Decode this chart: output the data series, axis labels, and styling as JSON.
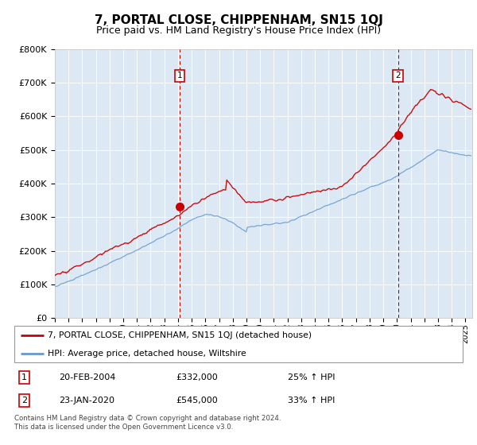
{
  "title": "7, PORTAL CLOSE, CHIPPENHAM, SN15 1QJ",
  "subtitle": "Price paid vs. HM Land Registry's House Price Index (HPI)",
  "title_fontsize": 11,
  "subtitle_fontsize": 9,
  "bg_color": "#dce9f5",
  "red_line_color": "#cc0000",
  "blue_line_color": "#6699cc",
  "annotation1_date": 2004.13,
  "annotation1_value": 332000,
  "annotation2_date": 2020.07,
  "annotation2_value": 545000,
  "legend_label_red": "7, PORTAL CLOSE, CHIPPENHAM, SN15 1QJ (detached house)",
  "legend_label_blue": "HPI: Average price, detached house, Wiltshire",
  "note1_date": "20-FEB-2004",
  "note1_price": "£332,000",
  "note1_hpi": "25% ↑ HPI",
  "note2_date": "23-JAN-2020",
  "note2_price": "£545,000",
  "note2_hpi": "33% ↑ HPI",
  "footer": "Contains HM Land Registry data © Crown copyright and database right 2024.\nThis data is licensed under the Open Government Licence v3.0.",
  "xmin": 1995,
  "xmax": 2025.5,
  "ymin": 0,
  "ymax": 800000,
  "yticks": [
    0,
    100000,
    200000,
    300000,
    400000,
    500000,
    600000,
    700000,
    800000
  ]
}
